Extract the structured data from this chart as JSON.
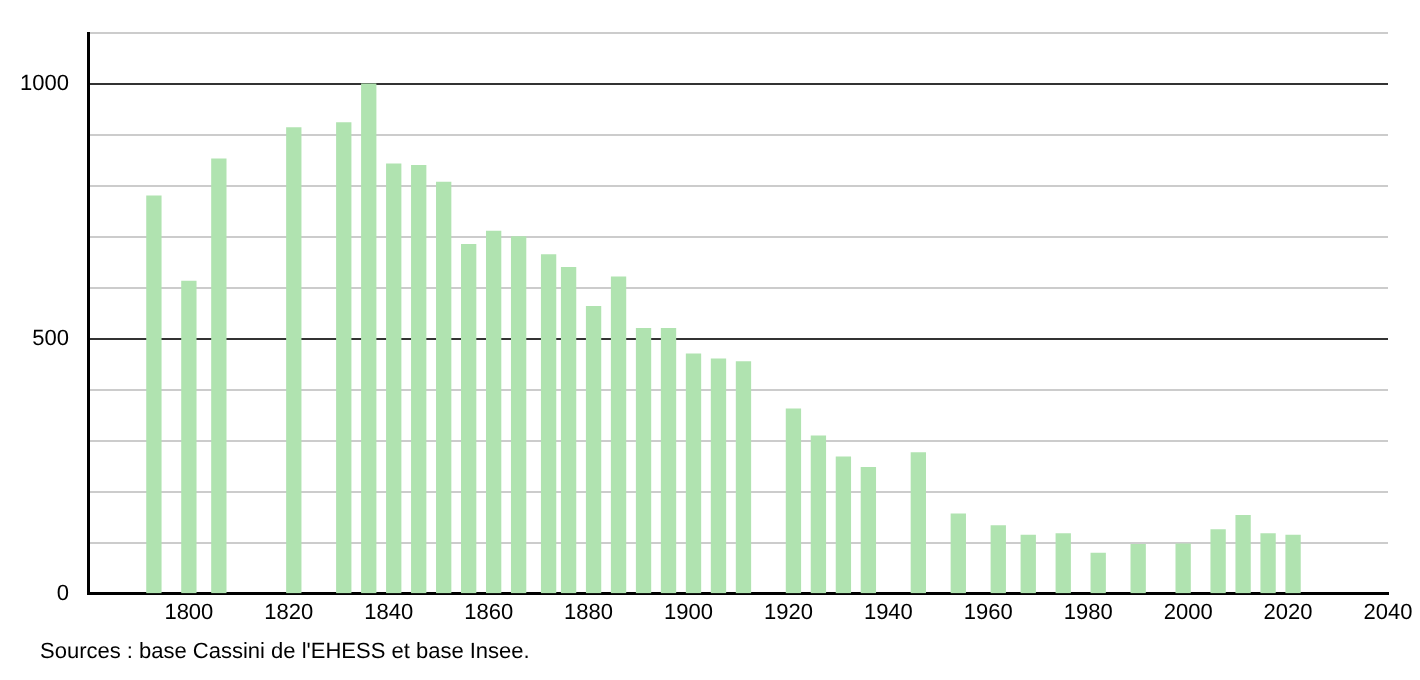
{
  "chart_data": {
    "type": "bar",
    "x": [
      1793,
      1800,
      1806,
      1821,
      1831,
      1836,
      1841,
      1846,
      1851,
      1856,
      1861,
      1866,
      1872,
      1876,
      1881,
      1886,
      1891,
      1896,
      1901,
      1906,
      1911,
      1921,
      1926,
      1931,
      1936,
      1946,
      1954,
      1962,
      1968,
      1975,
      1982,
      1990,
      1999,
      2006,
      2011,
      2016,
      2021
    ],
    "values": [
      780,
      613,
      853,
      914,
      924,
      1000,
      843,
      840,
      807,
      685,
      711,
      700,
      665,
      640,
      563,
      621,
      520,
      520,
      470,
      460,
      455,
      362,
      309,
      268,
      247,
      276,
      156,
      133,
      114,
      117,
      79,
      96,
      97,
      125,
      153,
      117,
      114
    ],
    "color": "#b0e3b0",
    "xlim": [
      1780,
      2040
    ],
    "xticks": [
      1800,
      1820,
      1840,
      1860,
      1880,
      1900,
      1920,
      1940,
      1960,
      1980,
      2000,
      2020,
      2040
    ],
    "ylim": [
      0,
      1100
    ],
    "yticks": [
      0,
      {
        "value": 100,
        "label": null
      },
      {
        "value": 200,
        "label": null
      },
      {
        "value": 300,
        "label": null
      },
      {
        "value": 400,
        "label": null
      },
      500,
      {
        "value": 600,
        "label": null
      },
      {
        "value": 700,
        "label": null
      },
      {
        "value": 800,
        "label": null
      },
      {
        "value": 900,
        "label": null
      },
      1000,
      {
        "value": 1100,
        "label": null
      }
    ],
    "grid": "y",
    "annotations": [
      "Sources : base Cassini de l'EHESS et base Insee."
    ]
  }
}
